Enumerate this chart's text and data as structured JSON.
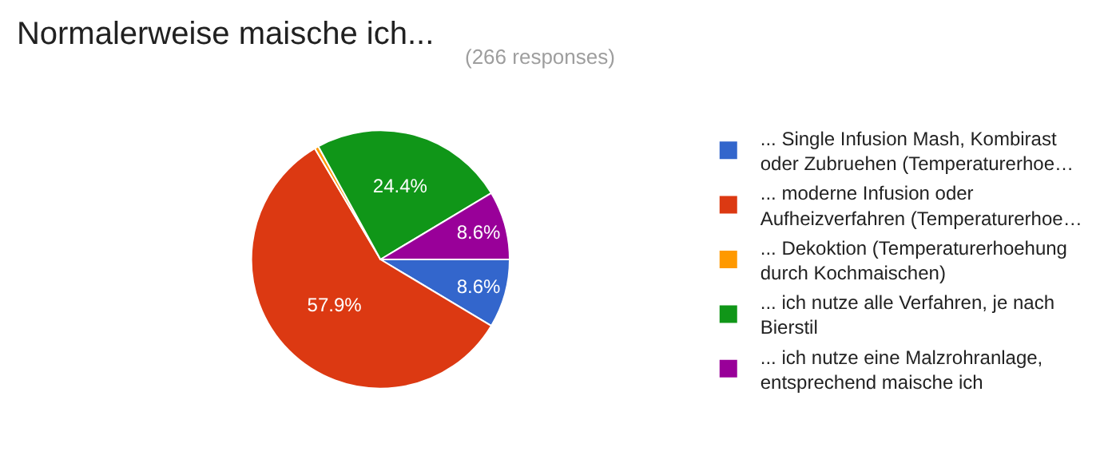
{
  "chart_data": {
    "type": "pie",
    "title": "Normalerweise maische ich...",
    "subtitle": "(266 responses)",
    "categories": [
      "... Single Infusion Mash, Kombirast oder Zubruehen (Temperaturerhoe…",
      "... moderne Infusion oder Aufheizverfahren (Temperaturerhoe…",
      "... Dekoktion (Temperaturerhoehung durch Kochmaischen)",
      "... ich nutze alle Verfahren, je nach Bierstil",
      "... ich nutze eine Malzrohranlage, entsprechend maische ich"
    ],
    "values": [
      8.6,
      57.9,
      0.5,
      24.4,
      8.6
    ],
    "value_labels": [
      "8.6%",
      "57.9%",
      null,
      "24.4%",
      "8.6%"
    ],
    "colors": [
      "#3366cc",
      "#dc3912",
      "#ff9900",
      "#109618",
      "#990099"
    ],
    "legend": "right"
  }
}
